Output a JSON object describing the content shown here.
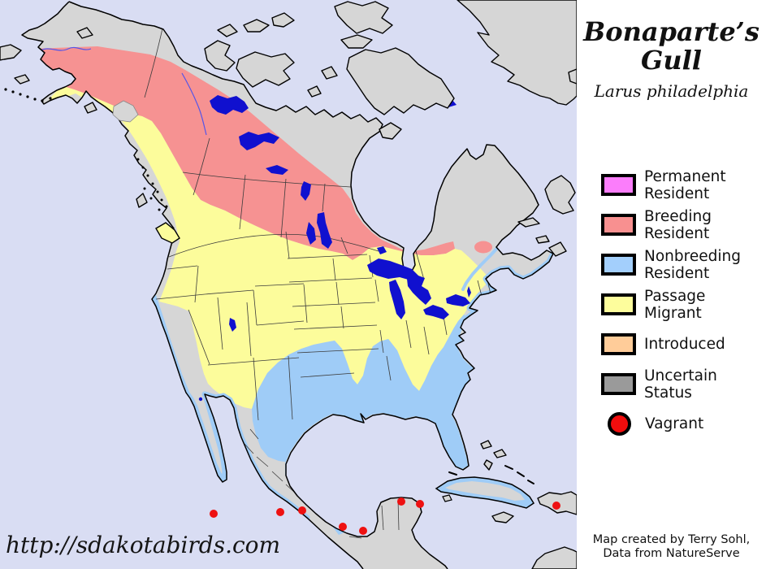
{
  "title": "Bonaparte’s Gull",
  "subtitle": "Larus philadelphia",
  "watermark": "http://sdakotabirds.com",
  "credit": "Map created by Terry Sohl,\nData from NatureServe",
  "colors": {
    "ocean": "#d9ddf3",
    "land": "#d6d6d6",
    "permanent": "#fb7dfb",
    "breeding": "#f69292",
    "nonbreeding": "#9fccf7",
    "passage": "#fcfc9b",
    "introduced": "#fdcb9a",
    "uncertain": "#9a9a9a",
    "vagrant": "#ee1111",
    "lake": "#1010cf",
    "river": "#5555e8",
    "coast": "#000000",
    "border": "#3c3c3c"
  },
  "legend": {
    "items": [
      {
        "key": "permanent-resident",
        "label": "Permanent\nResident",
        "color": "#fb7dfb",
        "shape": "swatch"
      },
      {
        "key": "breeding-resident",
        "label": "Breeding\nResident",
        "color": "#f89090",
        "shape": "swatch"
      },
      {
        "key": "nonbreeding-resident",
        "label": "Nonbreeding\nResident",
        "color": "#a3cffc",
        "shape": "swatch"
      },
      {
        "key": "passage-migrant",
        "label": "Passage\nMigrant",
        "color": "#fdfd9c",
        "shape": "swatch"
      },
      {
        "key": "introduced",
        "label": "Introduced",
        "color": "#ffcc99",
        "shape": "swatch"
      },
      {
        "key": "uncertain-status",
        "label": "Uncertain\nStatus",
        "color": "#9a9a9a",
        "shape": "swatch"
      },
      {
        "key": "vagrant",
        "label": "Vagrant",
        "color": "#f20d0d",
        "shape": "circle"
      }
    ]
  },
  "map": {
    "vagrant_points": [
      [
        263,
        632
      ],
      [
        345,
        630
      ],
      [
        372,
        628
      ],
      [
        422,
        648
      ],
      [
        447,
        653
      ],
      [
        494,
        617
      ],
      [
        517,
        620
      ],
      [
        685,
        622
      ]
    ],
    "vagrant_radius": 5
  }
}
